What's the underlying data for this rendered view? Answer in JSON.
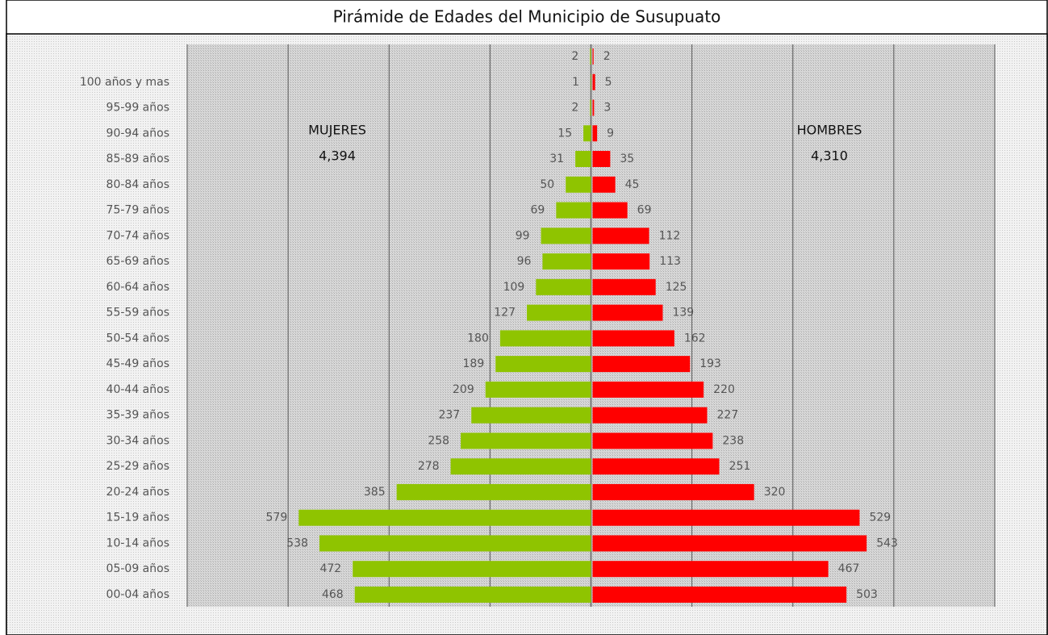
{
  "chart_data": {
    "type": "pyramid",
    "title": "Pirámide de Edades del Municipio de Susupuato",
    "categories": [
      null,
      "100 años y mas",
      "95-99 años",
      "90-94 años",
      "85-89 años",
      "80-84 años",
      "75-79 años",
      "70-74 años",
      "65-69 años",
      "60-64 años",
      "55-59 años",
      "50-54 años",
      "45-49 años",
      "40-44 años",
      "35-39 años",
      "30-34 años",
      "25-29 años",
      "20-24 años",
      "15-19 años",
      "10-14 años",
      "05-09 años",
      "00-04 años"
    ],
    "series": [
      {
        "name": "MUJERES",
        "side": "left",
        "color": "#8fc400",
        "total_label": "4,394",
        "values": [
          2,
          1,
          2,
          15,
          31,
          50,
          69,
          99,
          96,
          109,
          127,
          180,
          189,
          209,
          237,
          258,
          278,
          385,
          579,
          538,
          472,
          468
        ]
      },
      {
        "name": "HOMBRES",
        "side": "right",
        "color": "#ff0000",
        "total_label": "4,310",
        "values": [
          2,
          5,
          3,
          9,
          35,
          45,
          69,
          112,
          113,
          125,
          139,
          162,
          193,
          220,
          227,
          238,
          251,
          320,
          529,
          543,
          467,
          503
        ]
      }
    ],
    "xlim": [
      -800,
      800
    ],
    "xticks": [
      -800,
      -600,
      -400,
      -200,
      0,
      200,
      400,
      600,
      800
    ],
    "grid": true
  }
}
